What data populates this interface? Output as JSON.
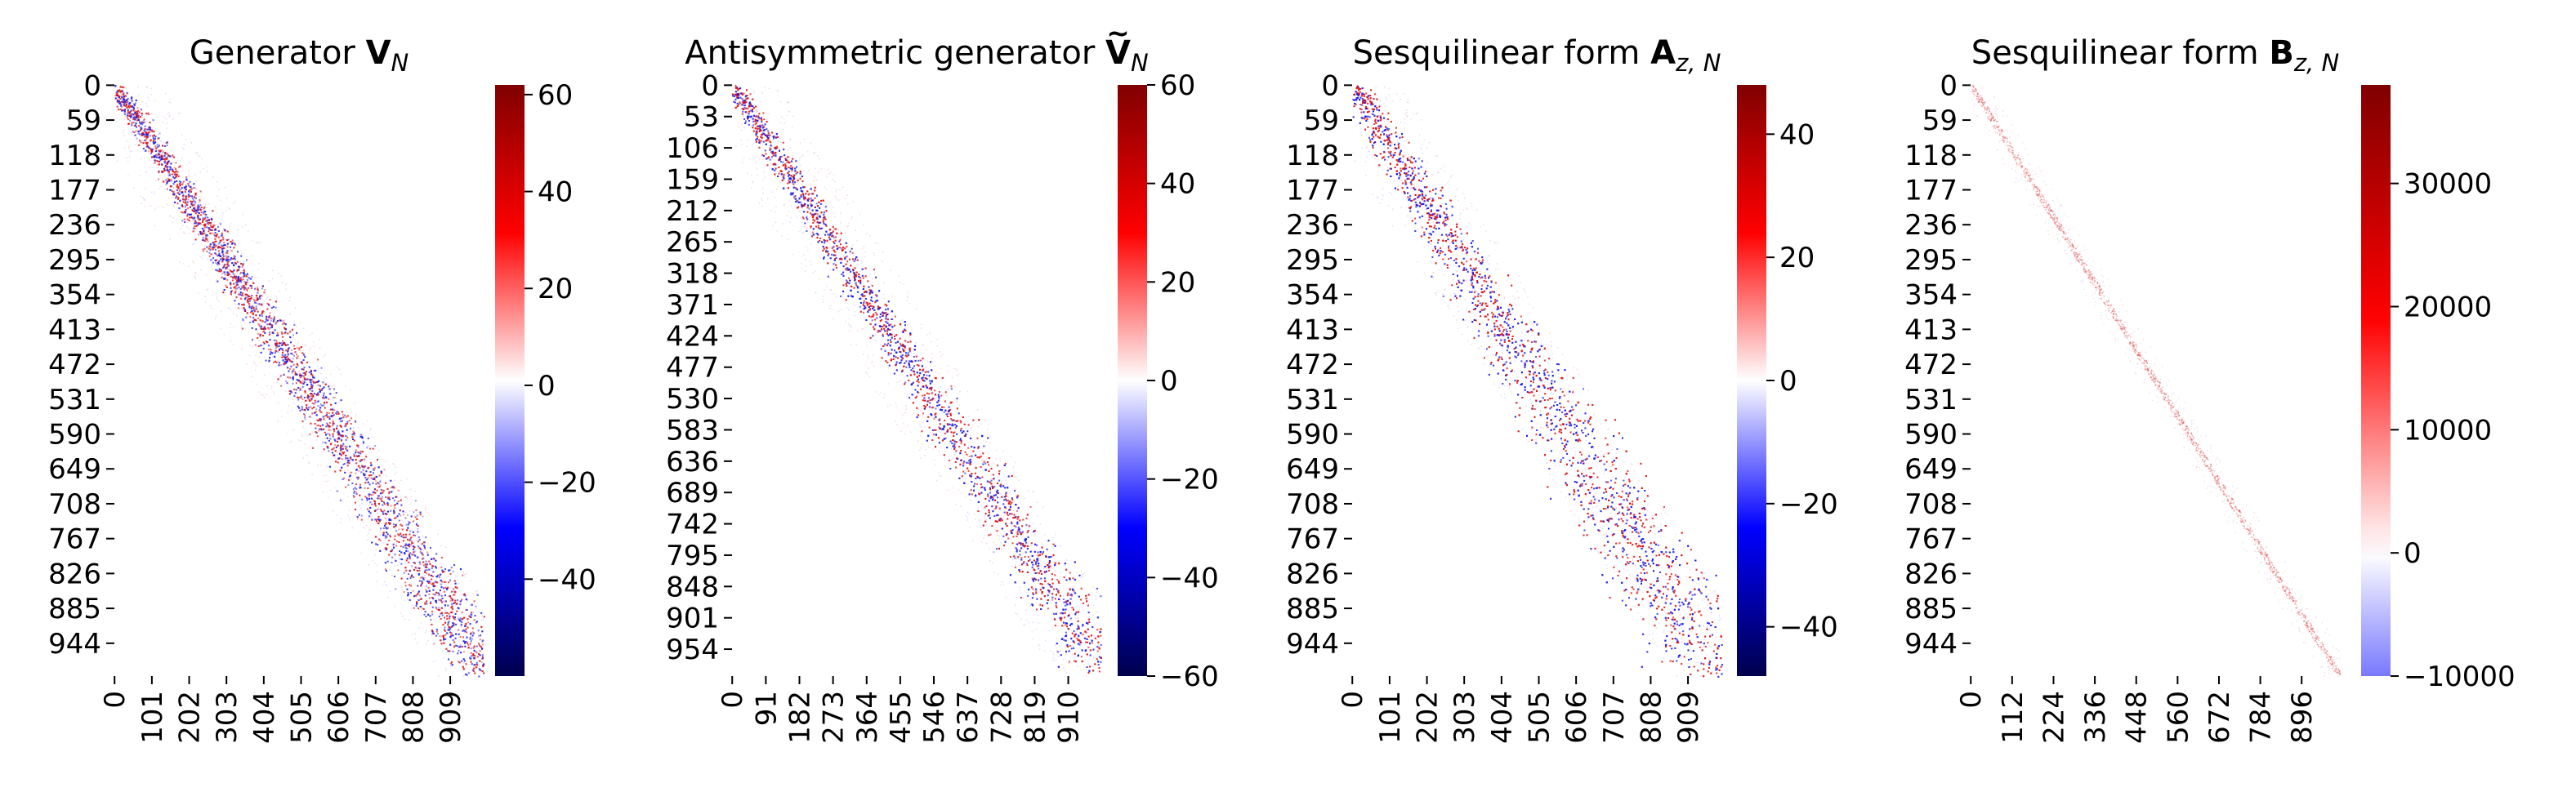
{
  "figure": {
    "panels": [
      {
        "title_main": "Generator ",
        "title_symbol": "V",
        "title_accent": "",
        "title_sub": "N",
        "colorbar_style": "seismic",
        "colorbar_range": [
          -60,
          62
        ],
        "colorbar_ticks": [
          {
            "value": 60,
            "label": "60"
          },
          {
            "value": 40,
            "label": "40"
          },
          {
            "value": 20,
            "label": "20"
          },
          {
            "value": 0,
            "label": "0"
          },
          {
            "value": -20,
            "label": "−20"
          },
          {
            "value": -40,
            "label": "−40"
          }
        ]
      },
      {
        "title_main": "Antisymmetric generator ",
        "title_symbol": "V",
        "title_accent": "~",
        "title_sub": "N",
        "colorbar_style": "seismic",
        "colorbar_range": [
          -60,
          60
        ],
        "colorbar_ticks": [
          {
            "value": 60,
            "label": "60"
          },
          {
            "value": 40,
            "label": "40"
          },
          {
            "value": 20,
            "label": "20"
          },
          {
            "value": 0,
            "label": "0"
          },
          {
            "value": -20,
            "label": "−20"
          },
          {
            "value": -40,
            "label": "−40"
          },
          {
            "value": -60,
            "label": "−60"
          }
        ]
      },
      {
        "title_main": "Sesquilinear form ",
        "title_symbol": "A",
        "title_accent": "",
        "title_sub": "z, N",
        "colorbar_style": "seismic",
        "colorbar_range": [
          -48,
          48
        ],
        "colorbar_ticks": [
          {
            "value": 40,
            "label": "40"
          },
          {
            "value": 20,
            "label": "20"
          },
          {
            "value": 0,
            "label": "0"
          },
          {
            "value": -20,
            "label": "−20"
          },
          {
            "value": -40,
            "label": "−40"
          }
        ]
      },
      {
        "title_main": "Sesquilinear form ",
        "title_symbol": "B",
        "title_accent": "",
        "title_sub": "z, N",
        "colorbar_style": "centered",
        "colorbar_range": [
          -10000,
          38000
        ],
        "colorbar_ticks": [
          {
            "value": 30000,
            "label": "30000"
          },
          {
            "value": 20000,
            "label": "20000"
          },
          {
            "value": 10000,
            "label": "10000"
          },
          {
            "value": 0,
            "label": "0"
          },
          {
            "value": -10000,
            "label": "−10000"
          }
        ]
      }
    ]
  },
  "chart_data": [
    {
      "type": "heatmap",
      "title": "Generator V_N",
      "matrix_size": 1000,
      "pattern": "off-diagonal band, alternating positive/negative values",
      "x_tick_labels": [
        "0",
        "101",
        "202",
        "303",
        "404",
        "505",
        "606",
        "707",
        "808",
        "909"
      ],
      "y_tick_labels": [
        "0",
        "59",
        "118",
        "177",
        "236",
        "295",
        "354",
        "413",
        "472",
        "531",
        "590",
        "649",
        "708",
        "767",
        "826",
        "885",
        "944"
      ],
      "colorbar_ticks": [
        60,
        40,
        20,
        0,
        -20,
        -40
      ],
      "colorbar_range": [
        -60,
        62
      ],
      "colormap": "seismic"
    },
    {
      "type": "heatmap",
      "title": "Antisymmetric generator Ṽ_N",
      "matrix_size": 1000,
      "pattern": "off-diagonal band, alternating positive/negative values",
      "x_tick_labels": [
        "0",
        "91",
        "182",
        "273",
        "364",
        "455",
        "546",
        "637",
        "728",
        "819",
        "910"
      ],
      "y_tick_labels": [
        "0",
        "53",
        "106",
        "159",
        "212",
        "265",
        "318",
        "371",
        "424",
        "477",
        "530",
        "583",
        "636",
        "689",
        "742",
        "795",
        "848",
        "901",
        "954"
      ],
      "colorbar_ticks": [
        60,
        40,
        20,
        0,
        -20,
        -40,
        -60
      ],
      "colorbar_range": [
        -60,
        60
      ],
      "colormap": "seismic"
    },
    {
      "type": "heatmap",
      "title": "Sesquilinear form A_{z,N}",
      "matrix_size": 1000,
      "pattern": "wide diagonal band, alternating positive/negative values",
      "x_tick_labels": [
        "0",
        "101",
        "202",
        "303",
        "404",
        "505",
        "606",
        "707",
        "808",
        "909"
      ],
      "y_tick_labels": [
        "0",
        "59",
        "118",
        "177",
        "236",
        "295",
        "354",
        "413",
        "472",
        "531",
        "590",
        "649",
        "708",
        "767",
        "826",
        "885",
        "944"
      ],
      "colorbar_ticks": [
        40,
        20,
        0,
        -20,
        -40
      ],
      "colorbar_range": [
        -48,
        48
      ],
      "colormap": "seismic"
    },
    {
      "type": "heatmap",
      "title": "Sesquilinear form B_{z,N}",
      "matrix_size": 1000,
      "pattern": "thin positive main diagonal, faint elsewhere",
      "x_tick_labels": [
        "0",
        "112",
        "224",
        "336",
        "448",
        "560",
        "672",
        "784",
        "896"
      ],
      "y_tick_labels": [
        "0",
        "59",
        "118",
        "177",
        "236",
        "295",
        "354",
        "413",
        "472",
        "531",
        "590",
        "649",
        "708",
        "767",
        "826",
        "885",
        "944"
      ],
      "colorbar_ticks": [
        30000,
        20000,
        10000,
        0,
        -10000
      ],
      "colorbar_range": [
        -10000,
        38000
      ],
      "colormap": "seismic (centered at 0)"
    }
  ]
}
